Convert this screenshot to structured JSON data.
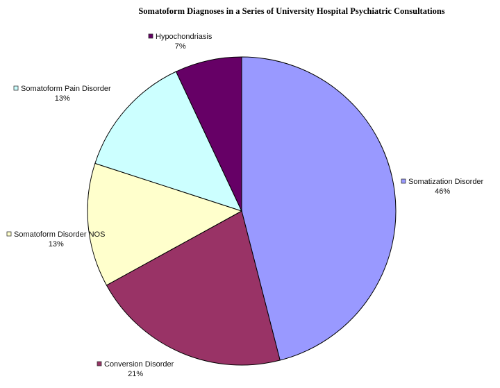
{
  "chart_data": {
    "type": "pie",
    "title": "Somatoform Diagnoses in a Series of University Hospital Psychiatric Consultations",
    "categories": [
      "Somatization Disorder",
      "Conversion Disorder",
      "Somatoform Disorder NOS",
      "Somatoform Pain Disorder",
      "Hypochondriasis"
    ],
    "values": [
      46,
      21,
      13,
      13,
      7
    ],
    "value_labels": [
      "46%",
      "21%",
      "13%",
      "13%",
      "7%"
    ],
    "colors": [
      "#9999ff",
      "#993366",
      "#ffffcc",
      "#ccffff",
      "#660066"
    ]
  }
}
